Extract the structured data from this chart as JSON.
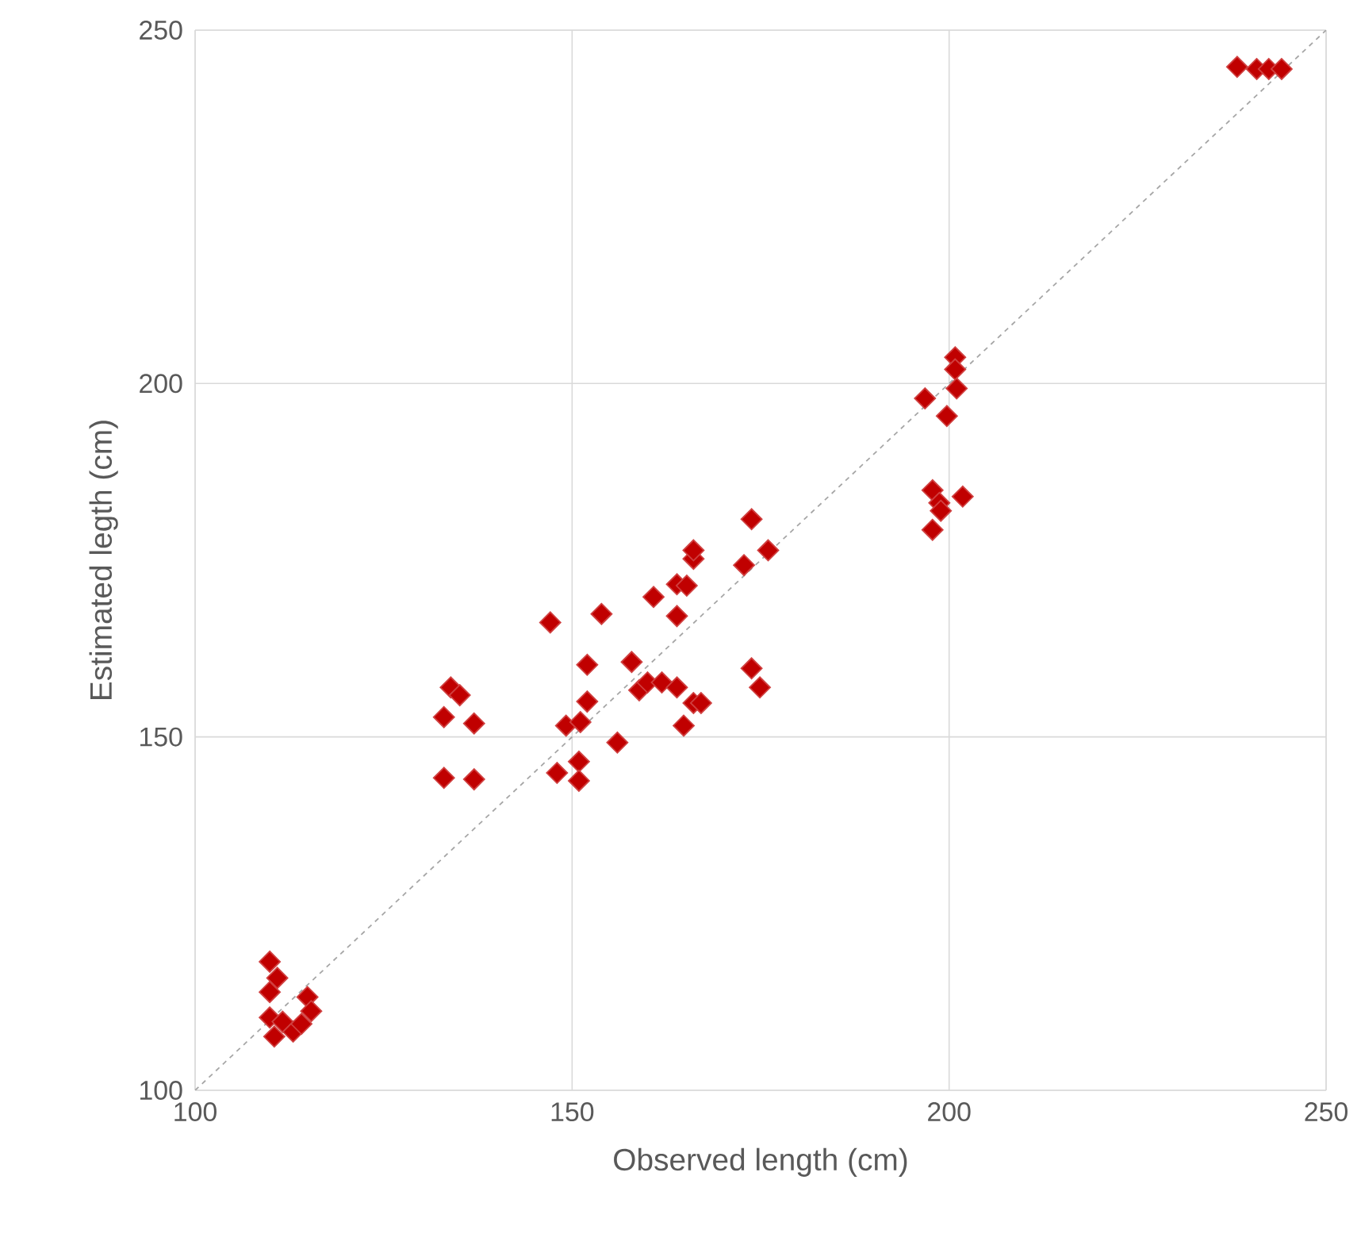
{
  "chart_data": {
    "type": "scatter",
    "xlabel": "Observed length (cm)",
    "ylabel": "Estimated legth (cm)",
    "xlim": [
      100,
      250
    ],
    "ylim": [
      100,
      250
    ],
    "xticks": [
      100,
      150,
      200,
      250
    ],
    "yticks": [
      100,
      150,
      200,
      250
    ],
    "grid": true,
    "series": [
      {
        "color": "#c00000",
        "marker": "diamond",
        "x": [
          109.9,
          110.9,
          109.9,
          114.9,
          115.4,
          109.9,
          113.0,
          110.5,
          114.1,
          111.6,
          133.0,
          137.0,
          133.0,
          137.0,
          133.9,
          135.1,
          147.1,
          148.0,
          150.9,
          150.9,
          149.2,
          151.1,
          152.0,
          152.0,
          153.9,
          156.0,
          157.9,
          158.9,
          160.0,
          160.8,
          161.9,
          163.9,
          163.9,
          163.9,
          165.2,
          164.8,
          166.1,
          167.1,
          166.1,
          166.1,
          172.8,
          173.8,
          176.0,
          173.8,
          174.9,
          200.8,
          200.8,
          201.0,
          196.8,
          199.7,
          197.8,
          201.8,
          198.7,
          197.8,
          198.9,
          238.2,
          240.8,
          242.4,
          244.1
        ],
        "values": [
          118.2,
          115.9,
          113.9,
          113.2,
          111.2,
          110.3,
          108.3,
          107.6,
          109.4,
          109.7,
          144.2,
          144.0,
          152.8,
          151.9,
          157.0,
          155.9,
          166.2,
          144.9,
          146.5,
          143.8,
          151.6,
          152.1,
          155.0,
          160.2,
          167.4,
          149.2,
          160.6,
          156.6,
          157.7,
          169.8,
          157.7,
          157.0,
          167.1,
          171.6,
          171.4,
          151.6,
          154.8,
          154.8,
          175.2,
          176.4,
          174.3,
          180.8,
          176.4,
          159.7,
          157.0,
          203.7,
          202.0,
          199.3,
          197.9,
          195.4,
          184.9,
          184.0,
          183.1,
          179.3,
          182.0,
          244.8,
          244.5,
          244.5,
          244.5
        ]
      },
      {
        "type": "line",
        "color": "#a6a6a6",
        "marker": "none",
        "line_style": "dashed",
        "x": [
          100,
          250
        ],
        "values": [
          100,
          250
        ]
      }
    ]
  }
}
